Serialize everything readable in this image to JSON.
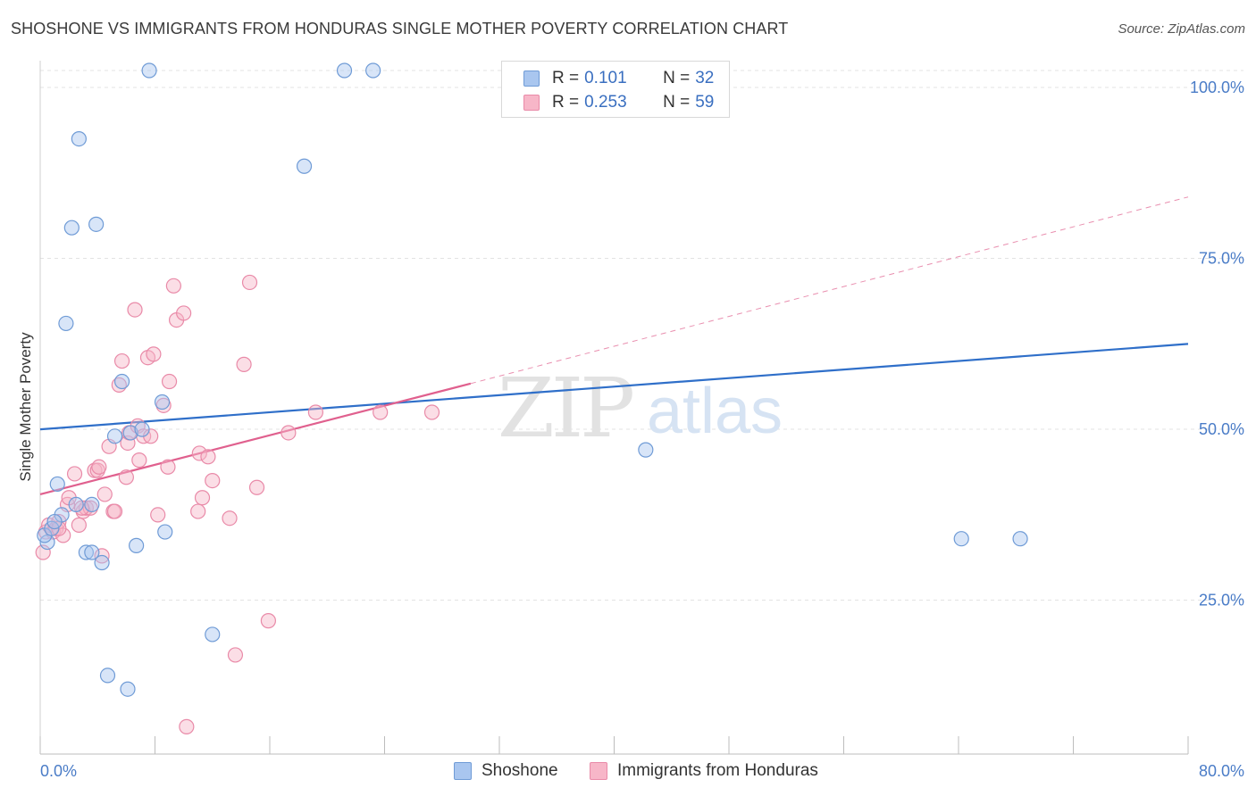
{
  "title": "SHOSHONE VS IMMIGRANTS FROM HONDURAS SINGLE MOTHER POVERTY CORRELATION CHART",
  "source": "Source: ZipAtlas.com",
  "watermark": {
    "zip": "ZIP",
    "atlas": "atlas"
  },
  "legend": {
    "rows": [
      {
        "r_label": "R =",
        "r_value": "0.101",
        "n_label": "N =",
        "n_value": "32"
      },
      {
        "r_label": "R =",
        "r_value": "0.253",
        "n_label": "N =",
        "n_value": "59"
      }
    ]
  },
  "bottom_legend": [
    "Shoshone",
    "Immigrants from Honduras"
  ],
  "colors": {
    "shoshone_fill": "#a9c6ef",
    "shoshone_stroke": "#6f9bd6",
    "shoshone_line": "#2f6fc9",
    "honduras_fill": "#f7b6c8",
    "honduras_stroke": "#e98aa8",
    "honduras_line": "#e0608e",
    "tick_text": "#4a7cc7",
    "grid": "#e3e3e3"
  },
  "chart_data": {
    "type": "scatter",
    "title": "SHOSHONE VS IMMIGRANTS FROM HONDURAS SINGLE MOTHER POVERTY CORRELATION CHART",
    "xlabel": "",
    "ylabel": "Single Mother Poverty",
    "xlim": [
      0,
      80
    ],
    "ylim": [
      0,
      100
    ],
    "x_ticks_labeled": [
      "0.0%",
      "80.0%"
    ],
    "y_ticks": [
      "100.0%",
      "75.0%",
      "50.0%",
      "25.0%"
    ],
    "y_tick_values": [
      100,
      75,
      50,
      25
    ],
    "grid": true,
    "legend_position": "top-center",
    "series": [
      {
        "name": "Shoshone",
        "points": [
          [
            0.5,
            31
          ],
          [
            1.2,
            39.5
          ],
          [
            1.5,
            35
          ],
          [
            1.8,
            63
          ],
          [
            2.2,
            77
          ],
          [
            2.5,
            36.5
          ],
          [
            2.7,
            90
          ],
          [
            3.2,
            29.5
          ],
          [
            3.6,
            29.5
          ],
          [
            3.6,
            36.5
          ],
          [
            3.9,
            77.5
          ],
          [
            4.3,
            28
          ],
          [
            4.7,
            11.5
          ],
          [
            5.2,
            46.5
          ],
          [
            5.7,
            54.5
          ],
          [
            6.1,
            9.5
          ],
          [
            6.3,
            47
          ],
          [
            6.7,
            30.5
          ],
          [
            7.1,
            47.5
          ],
          [
            7.6,
            100
          ],
          [
            8.5,
            51.5
          ],
          [
            8.7,
            32.5
          ],
          [
            12,
            17.5
          ],
          [
            18.4,
            86
          ],
          [
            21.2,
            100
          ],
          [
            23.2,
            100
          ],
          [
            42.2,
            44.5
          ],
          [
            64.2,
            31.5
          ],
          [
            68.3,
            31.5
          ],
          [
            0.3,
            32
          ],
          [
            0.8,
            33
          ],
          [
            1.0,
            34
          ]
        ]
      },
      {
        "name": "Immigrants from Honduras",
        "points": [
          [
            0.2,
            29.5
          ],
          [
            0.4,
            32.5
          ],
          [
            0.6,
            33.5
          ],
          [
            0.9,
            32.5
          ],
          [
            1.1,
            33
          ],
          [
            1.3,
            34
          ],
          [
            1.6,
            32
          ],
          [
            1.9,
            36.5
          ],
          [
            2.0,
            37.5
          ],
          [
            2.4,
            41
          ],
          [
            2.7,
            33.5
          ],
          [
            3.0,
            35.5
          ],
          [
            3.2,
            36
          ],
          [
            3.5,
            36
          ],
          [
            3.8,
            41.5
          ],
          [
            4.0,
            41.5
          ],
          [
            4.1,
            42
          ],
          [
            4.3,
            29
          ],
          [
            4.5,
            38
          ],
          [
            4.8,
            45
          ],
          [
            5.1,
            35.5
          ],
          [
            5.2,
            35.5
          ],
          [
            5.5,
            54
          ],
          [
            5.7,
            57.5
          ],
          [
            6.0,
            40.5
          ],
          [
            6.1,
            45.5
          ],
          [
            6.2,
            47
          ],
          [
            6.6,
            65
          ],
          [
            6.8,
            48
          ],
          [
            6.9,
            43
          ],
          [
            7.2,
            46.5
          ],
          [
            7.5,
            58
          ],
          [
            7.7,
            46.5
          ],
          [
            7.9,
            58.5
          ],
          [
            8.2,
            35
          ],
          [
            8.6,
            51
          ],
          [
            8.9,
            42
          ],
          [
            9.0,
            54.5
          ],
          [
            9.3,
            68.5
          ],
          [
            9.5,
            63.5
          ],
          [
            10.0,
            64.5
          ],
          [
            10.2,
            4
          ],
          [
            11.0,
            35.5
          ],
          [
            11.1,
            44
          ],
          [
            11.3,
            37.5
          ],
          [
            11.7,
            43.5
          ],
          [
            12.0,
            40
          ],
          [
            13.2,
            34.5
          ],
          [
            13.6,
            14.5
          ],
          [
            14.2,
            57
          ],
          [
            14.6,
            69
          ],
          [
            15.1,
            39
          ],
          [
            15.9,
            19.5
          ],
          [
            17.3,
            47
          ],
          [
            19.2,
            50
          ],
          [
            23.7,
            50
          ],
          [
            27.3,
            50
          ],
          [
            1.3,
            33
          ],
          [
            2.9,
            36
          ]
        ]
      }
    ],
    "trend_lines": [
      {
        "series": "Shoshone",
        "from": [
          0,
          47.5
        ],
        "to": [
          80,
          60
        ]
      },
      {
        "series": "Immigrants from Honduras",
        "solid_from": [
          0,
          38
        ],
        "solid_to": [
          30,
          54.2
        ],
        "dashed_to": [
          80,
          81.5
        ]
      }
    ]
  }
}
